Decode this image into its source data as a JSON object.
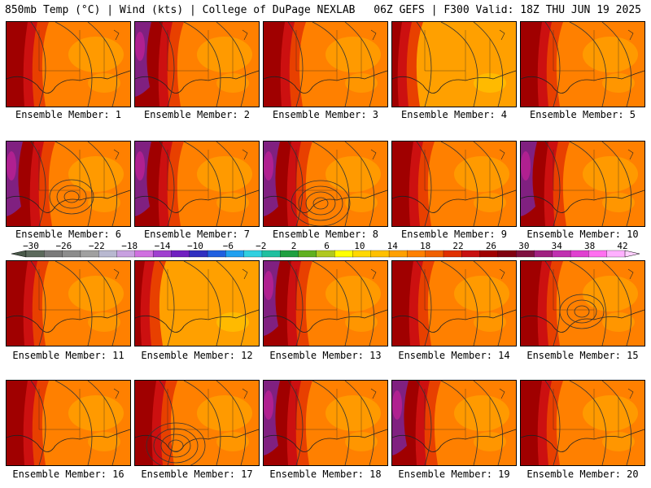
{
  "header": {
    "left": "850mb Temp (°C) | Wind (kts) | College of DuPage NEXLAB",
    "right": "06Z GEFS | F300 Valid: 18Z THU JUN 19 2025"
  },
  "members": [
    {
      "label": "Ensemble Member: 1",
      "west_heat": "hot",
      "low": null
    },
    {
      "label": "Ensemble Member: 2",
      "west_heat": "very-hot",
      "low": null
    },
    {
      "label": "Ensemble Member: 3",
      "west_heat": "hot",
      "low": null
    },
    {
      "label": "Ensemble Member: 4",
      "west_heat": "warm",
      "low": null
    },
    {
      "label": "Ensemble Member: 5",
      "west_heat": "hot",
      "low": null
    },
    {
      "label": "Ensemble Member: 6",
      "west_heat": "very-hot",
      "low": "gulf"
    },
    {
      "label": "Ensemble Member: 7",
      "west_heat": "very-hot",
      "low": null
    },
    {
      "label": "Ensemble Member: 8",
      "west_heat": "very-hot",
      "low": "gulf-strong"
    },
    {
      "label": "Ensemble Member: 9",
      "west_heat": "hot",
      "low": null
    },
    {
      "label": "Ensemble Member: 10",
      "west_heat": "very-hot",
      "low": null
    },
    {
      "label": "Ensemble Member: 11",
      "west_heat": "hot",
      "low": null
    },
    {
      "label": "Ensemble Member: 12",
      "west_heat": "warm",
      "low": null
    },
    {
      "label": "Ensemble Member: 13",
      "west_heat": "very-hot",
      "low": null
    },
    {
      "label": "Ensemble Member: 14",
      "west_heat": "hot",
      "low": null
    },
    {
      "label": "Ensemble Member: 15",
      "west_heat": "hot",
      "low": "southeast"
    },
    {
      "label": "Ensemble Member: 16",
      "west_heat": "hot",
      "low": null
    },
    {
      "label": "Ensemble Member: 17",
      "west_heat": "hot",
      "low": "gulf-west"
    },
    {
      "label": "Ensemble Member: 18",
      "west_heat": "very-hot",
      "low": null
    },
    {
      "label": "Ensemble Member: 19",
      "west_heat": "very-hot",
      "low": null
    },
    {
      "label": "Ensemble Member: 20",
      "west_heat": "hot",
      "low": null
    }
  ],
  "colorbar": {
    "labels": [
      "−30",
      "−26",
      "−22",
      "−18",
      "−14",
      "−10",
      "−6",
      "−2",
      "2",
      "6",
      "10",
      "14",
      "18",
      "22",
      "26",
      "30",
      "34",
      "38",
      "42"
    ],
    "colors": [
      "#5c6a5c",
      "#7a7a7a",
      "#8c8c8c",
      "#a0a0a0",
      "#b8b8d0",
      "#c8a0e0",
      "#d070e0",
      "#a040d0",
      "#7020c0",
      "#3030c0",
      "#2060e0",
      "#20a0f0",
      "#30d0e0",
      "#20c0a0",
      "#20a040",
      "#60b020",
      "#b0c820",
      "#ffff00",
      "#ffd800",
      "#ffc000",
      "#ffa000",
      "#ff8000",
      "#f06000",
      "#e03000",
      "#c81010",
      "#a00000",
      "#800010",
      "#801040",
      "#a02080",
      "#c030b0",
      "#e040d0",
      "#ff70f0",
      "#ffb0ff"
    ]
  },
  "palette": {
    "deep_red": "#a00000",
    "red": "#cc1010",
    "red_orange": "#e84000",
    "orange": "#ff8000",
    "light_orange": "#ffa000",
    "gold": "#ffc000",
    "magenta": "#b02090",
    "purple": "#802080"
  }
}
